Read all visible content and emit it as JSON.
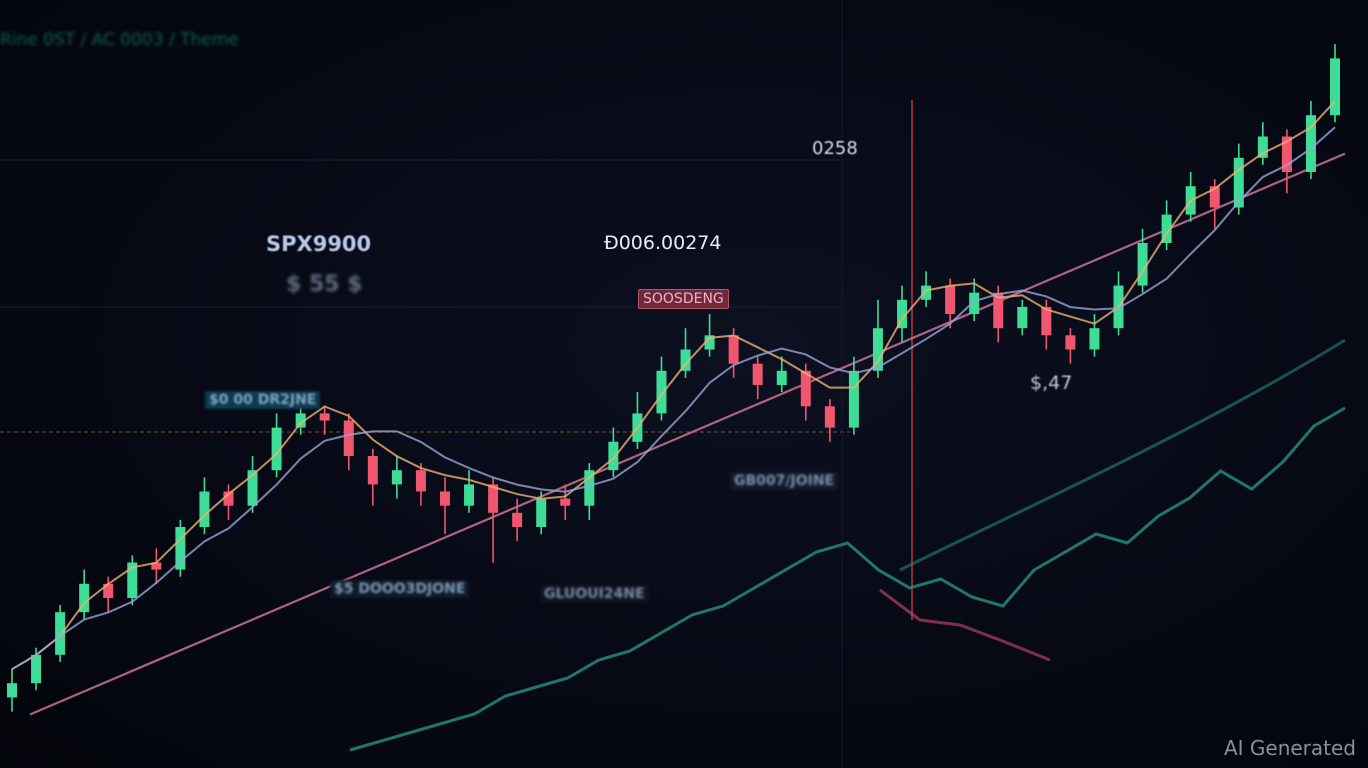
{
  "header": {
    "breadcrumb": "Rine 0ST / AC 0003 / Theme"
  },
  "symbol": "SPX9900",
  "fee_label": "$ 55 $",
  "current_price": "Ð006.00274",
  "reference_value": "0258",
  "tags": {
    "left_level": "$0 00 DR2JNE",
    "peak_signal": "SOOSDENG",
    "bottom_left": "$5 DOOO3DJONE",
    "bottom_mid": "GLUOUI24NE",
    "right_level": "GB007/JOINE"
  },
  "right_value": "$,47",
  "watermark": "AI Generated",
  "colors": {
    "up": "#3ddc97",
    "down": "#f0566e",
    "ma_fast": "#f0b070",
    "ma_slow": "#9aa4d8",
    "trend": "#d87aa0",
    "indicator": "#2a9a8a",
    "indicator_down": "#d04a6a"
  },
  "chart_data": {
    "type": "candlestick",
    "title": "",
    "xlabel": "",
    "ylabel": "",
    "grid": false,
    "ylim": [
      0,
      100
    ],
    "ohlc": [
      [
        6,
        10,
        4,
        8
      ],
      [
        8,
        13,
        7,
        12
      ],
      [
        12,
        19,
        11,
        18
      ],
      [
        18,
        24,
        17,
        22
      ],
      [
        22,
        23,
        18,
        20
      ],
      [
        20,
        26,
        19,
        25
      ],
      [
        25,
        27,
        22,
        24
      ],
      [
        24,
        31,
        23,
        30
      ],
      [
        30,
        37,
        29,
        35
      ],
      [
        35,
        36,
        31,
        33
      ],
      [
        33,
        40,
        32,
        38
      ],
      [
        38,
        46,
        37,
        44
      ],
      [
        44,
        48,
        43,
        46
      ],
      [
        46,
        47,
        43,
        45
      ],
      [
        45,
        46,
        38,
        40
      ],
      [
        40,
        41,
        33,
        36
      ],
      [
        36,
        40,
        34,
        38
      ],
      [
        38,
        39,
        33,
        35
      ],
      [
        35,
        37,
        29,
        33
      ],
      [
        33,
        38,
        32,
        36
      ],
      [
        36,
        37,
        25,
        32
      ],
      [
        32,
        34,
        28,
        30
      ],
      [
        30,
        35,
        29,
        34
      ],
      [
        34,
        36,
        31,
        33
      ],
      [
        33,
        39,
        31,
        38
      ],
      [
        38,
        44,
        37,
        42
      ],
      [
        42,
        49,
        41,
        46
      ],
      [
        46,
        54,
        45,
        52
      ],
      [
        52,
        58,
        51,
        55
      ],
      [
        55,
        60,
        54,
        57
      ],
      [
        57,
        58,
        51,
        53
      ],
      [
        53,
        54,
        48,
        50
      ],
      [
        50,
        54,
        49,
        52
      ],
      [
        52,
        53,
        45,
        47
      ],
      [
        47,
        48,
        42,
        44
      ],
      [
        44,
        54,
        43,
        52
      ],
      [
        52,
        62,
        51,
        58
      ],
      [
        58,
        64,
        56,
        62
      ],
      [
        62,
        66,
        61,
        64
      ],
      [
        64,
        65,
        58,
        60
      ],
      [
        60,
        65,
        59,
        63
      ],
      [
        63,
        64,
        56,
        58
      ],
      [
        58,
        62,
        57,
        61
      ],
      [
        61,
        62,
        55,
        57
      ],
      [
        57,
        58,
        53,
        55
      ],
      [
        55,
        60,
        54,
        58
      ],
      [
        58,
        66,
        57,
        64
      ],
      [
        64,
        72,
        63,
        70
      ],
      [
        70,
        76,
        69,
        74
      ],
      [
        74,
        80,
        73,
        78
      ],
      [
        78,
        79,
        72,
        75
      ],
      [
        75,
        84,
        74,
        82
      ],
      [
        82,
        87,
        81,
        85
      ],
      [
        85,
        86,
        77,
        80
      ],
      [
        80,
        90,
        79,
        88
      ],
      [
        88,
        98,
        87,
        96
      ]
    ],
    "trend_line": [
      5,
      84
    ],
    "indicator": [
      2,
      3,
      4,
      5,
      6,
      8,
      9,
      10,
      12,
      13,
      15,
      17,
      18,
      20,
      22,
      24,
      25,
      22,
      20,
      21,
      19,
      18,
      22,
      24,
      26,
      25,
      28,
      30,
      33,
      31,
      34,
      38,
      40
    ]
  }
}
